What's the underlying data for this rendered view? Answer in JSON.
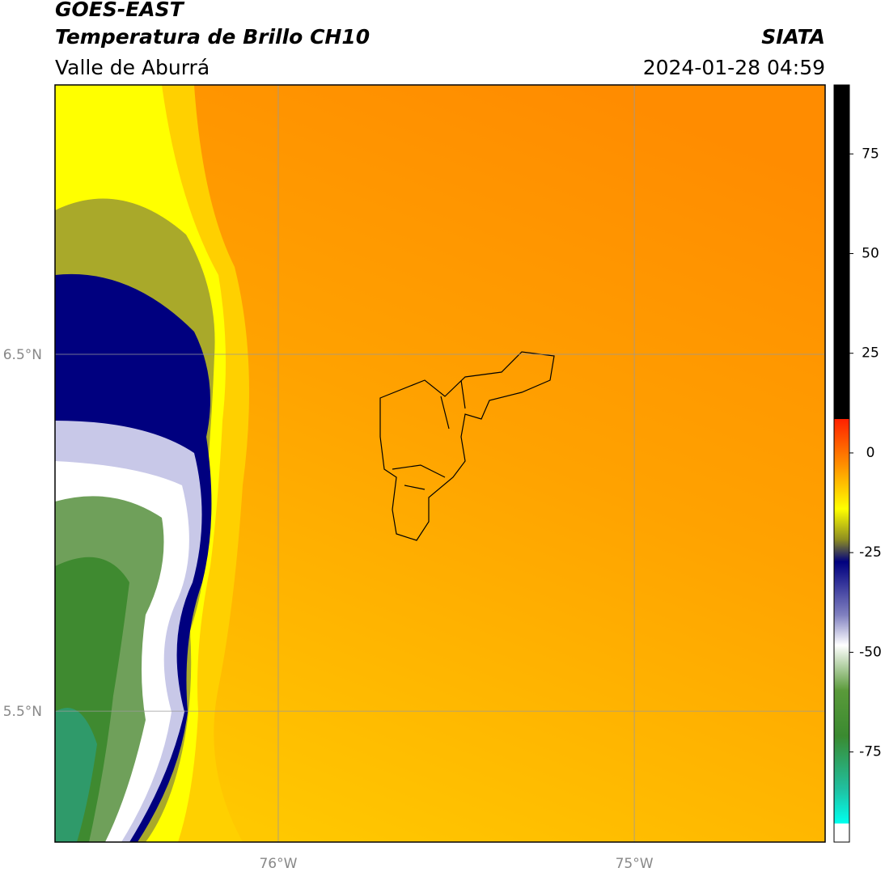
{
  "header": {
    "satellite": "GOES-EAST",
    "product": "Temperatura de Brillo CH10",
    "region": "Valle de Aburrá",
    "source": "SIATA",
    "datetime": "2024-01-28 04:59"
  },
  "map": {
    "xlim": [
      -76.627,
      -74.464
    ],
    "ylim": [
      5.133,
      7.255
    ],
    "xticks": [
      {
        "value": -76,
        "label": "76°W"
      },
      {
        "value": -75,
        "label": "75°W"
      }
    ],
    "yticks": [
      {
        "value": 6.5,
        "label": "6.5°N"
      },
      {
        "value": 5.5,
        "label": "5.5°N"
      }
    ],
    "grid": true
  },
  "colorbar": {
    "lim": [
      -97.6,
      92.3
    ],
    "ticks": [
      75,
      50,
      25,
      0,
      -25,
      -50,
      -75
    ]
  }
}
